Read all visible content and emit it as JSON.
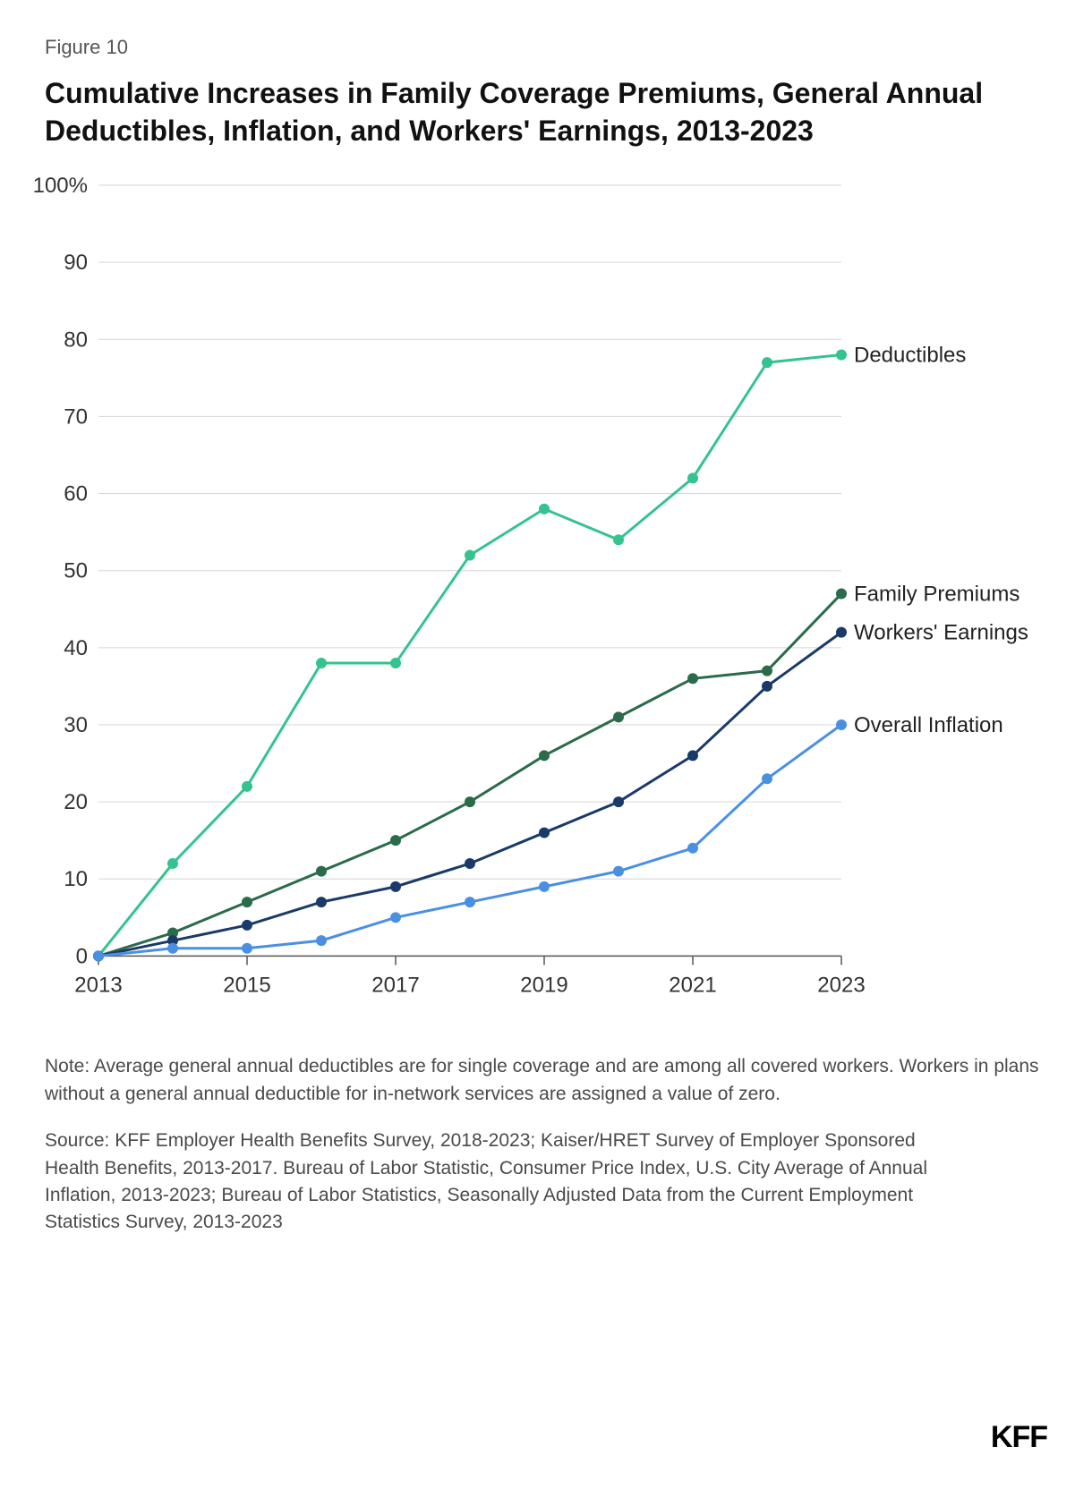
{
  "figure_label": "Figure 10",
  "title": "Cumulative Increases in Family Coverage Premiums, General Annual Deductibles, Inflation, and Workers' Earnings, 2013-2023",
  "note": "Note: Average general annual deductibles are for single coverage and are among all covered workers. Workers in plans without a general annual deductible for in-network services are assigned a value of zero.",
  "source": "Source: KFF Employer Health Benefits Survey, 2018-2023; Kaiser/HRET Survey of Employer Sponsored Health Benefits, 2013-2017. Bureau of Labor Statistic, Consumer Price Index, U.S. City Average of Annual Inflation, 2013-2023; Bureau of Labor Statistics, Seasonally Adjusted Data from the Current Employment Statistics Survey, 2013-2023",
  "logo": "KFF",
  "chart": {
    "type": "line",
    "years": [
      2013,
      2014,
      2015,
      2016,
      2017,
      2018,
      2019,
      2020,
      2021,
      2022,
      2023
    ],
    "x_tick_years": [
      2013,
      2015,
      2017,
      2019,
      2021,
      2023
    ],
    "y_ticks": [
      0,
      10,
      20,
      30,
      40,
      50,
      60,
      70,
      80,
      90,
      100
    ],
    "y_unit_suffix": "%",
    "ylim": [
      -1,
      100
    ],
    "xlim": [
      2013,
      2023
    ],
    "background_color": "#ffffff",
    "grid_color": "#d6d6d6",
    "axis_color": "#555555",
    "tick_fontsize": 24,
    "label_fontsize": 24,
    "line_width": 3,
    "marker_radius": 6,
    "series": [
      {
        "name": "Deductibles",
        "color": "#34c38f",
        "values": [
          0,
          12,
          22,
          38,
          38,
          52,
          58,
          54,
          62,
          77,
          78
        ]
      },
      {
        "name": "Family Premiums",
        "color": "#2a6b4a",
        "values": [
          0,
          3,
          7,
          11,
          15,
          20,
          26,
          31,
          36,
          37,
          47
        ]
      },
      {
        "name": "Workers' Earnings",
        "color": "#1a3a6a",
        "values": [
          0,
          2,
          4,
          7,
          9,
          12,
          16,
          20,
          26,
          35,
          42
        ]
      },
      {
        "name": "Overall Inflation",
        "color": "#4a90e2",
        "values": [
          0,
          1,
          1,
          2,
          5,
          7,
          9,
          11,
          14,
          23,
          30
        ]
      }
    ]
  }
}
